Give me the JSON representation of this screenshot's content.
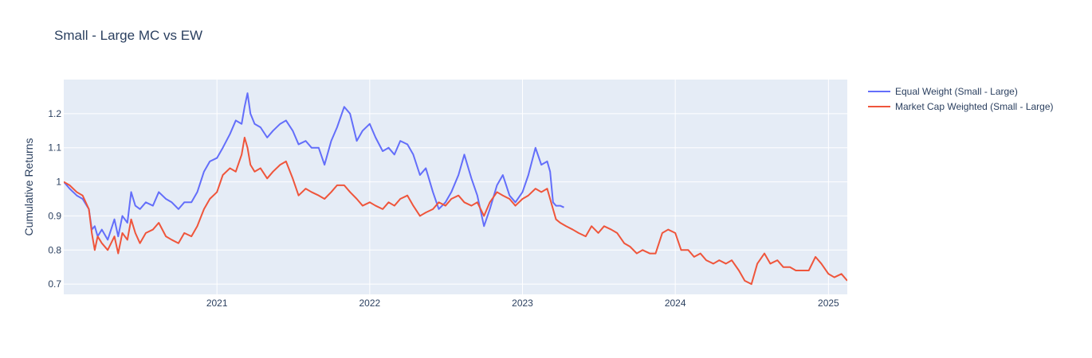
{
  "chart_data": {
    "type": "line",
    "title": "Small - Large MC vs EW",
    "xlabel": "",
    "ylabel": "Cumulative Returns",
    "x_range": [
      "2020-01-01",
      "2025-02-15"
    ],
    "ylim": [
      0.67,
      1.3
    ],
    "x_ticks": [
      {
        "date": "2021-01-01",
        "label": "2021"
      },
      {
        "date": "2022-01-01",
        "label": "2022"
      },
      {
        "date": "2023-01-01",
        "label": "2023"
      },
      {
        "date": "2024-01-01",
        "label": "2024"
      },
      {
        "date": "2025-01-01",
        "label": "2025"
      }
    ],
    "y_ticks": [
      0.7,
      0.8,
      0.9,
      1,
      1.1,
      1.2
    ],
    "y_tick_labels": [
      "0.7",
      "0.8",
      "0.9",
      "1",
      "1.1",
      "1.2"
    ],
    "grid": true,
    "legend_position": "top-right",
    "series": [
      {
        "name": "Equal Weight (Small - Large)",
        "color": "#636efa",
        "points": [
          [
            "2020-01-01",
            1.0
          ],
          [
            "2020-01-15",
            0.98
          ],
          [
            "2020-02-01",
            0.96
          ],
          [
            "2020-02-15",
            0.95
          ],
          [
            "2020-03-01",
            0.92
          ],
          [
            "2020-03-08",
            0.86
          ],
          [
            "2020-03-15",
            0.87
          ],
          [
            "2020-03-22",
            0.84
          ],
          [
            "2020-04-01",
            0.86
          ],
          [
            "2020-04-15",
            0.83
          ],
          [
            "2020-05-01",
            0.89
          ],
          [
            "2020-05-10",
            0.84
          ],
          [
            "2020-05-20",
            0.9
          ],
          [
            "2020-06-01",
            0.88
          ],
          [
            "2020-06-10",
            0.97
          ],
          [
            "2020-06-20",
            0.93
          ],
          [
            "2020-07-01",
            0.92
          ],
          [
            "2020-07-15",
            0.94
          ],
          [
            "2020-08-01",
            0.93
          ],
          [
            "2020-08-15",
            0.97
          ],
          [
            "2020-09-01",
            0.95
          ],
          [
            "2020-09-15",
            0.94
          ],
          [
            "2020-10-01",
            0.92
          ],
          [
            "2020-10-15",
            0.94
          ],
          [
            "2020-11-01",
            0.94
          ],
          [
            "2020-11-15",
            0.97
          ],
          [
            "2020-12-01",
            1.03
          ],
          [
            "2020-12-15",
            1.06
          ],
          [
            "2021-01-01",
            1.07
          ],
          [
            "2021-01-15",
            1.1
          ],
          [
            "2021-02-01",
            1.14
          ],
          [
            "2021-02-15",
            1.18
          ],
          [
            "2021-03-01",
            1.17
          ],
          [
            "2021-03-08",
            1.22
          ],
          [
            "2021-03-15",
            1.26
          ],
          [
            "2021-03-22",
            1.2
          ],
          [
            "2021-04-01",
            1.17
          ],
          [
            "2021-04-15",
            1.16
          ],
          [
            "2021-05-01",
            1.13
          ],
          [
            "2021-05-15",
            1.15
          ],
          [
            "2021-06-01",
            1.17
          ],
          [
            "2021-06-15",
            1.18
          ],
          [
            "2021-07-01",
            1.15
          ],
          [
            "2021-07-15",
            1.11
          ],
          [
            "2021-08-01",
            1.12
          ],
          [
            "2021-08-15",
            1.1
          ],
          [
            "2021-09-01",
            1.1
          ],
          [
            "2021-09-15",
            1.05
          ],
          [
            "2021-10-01",
            1.12
          ],
          [
            "2021-10-15",
            1.16
          ],
          [
            "2021-11-01",
            1.22
          ],
          [
            "2021-11-15",
            1.2
          ],
          [
            "2021-12-01",
            1.12
          ],
          [
            "2021-12-15",
            1.15
          ],
          [
            "2022-01-01",
            1.17
          ],
          [
            "2022-01-15",
            1.13
          ],
          [
            "2022-02-01",
            1.09
          ],
          [
            "2022-02-15",
            1.1
          ],
          [
            "2022-03-01",
            1.08
          ],
          [
            "2022-03-15",
            1.12
          ],
          [
            "2022-04-01",
            1.11
          ],
          [
            "2022-04-15",
            1.08
          ],
          [
            "2022-05-01",
            1.02
          ],
          [
            "2022-05-15",
            1.04
          ],
          [
            "2022-06-01",
            0.97
          ],
          [
            "2022-06-15",
            0.92
          ],
          [
            "2022-07-01",
            0.94
          ],
          [
            "2022-07-15",
            0.97
          ],
          [
            "2022-08-01",
            1.02
          ],
          [
            "2022-08-15",
            1.08
          ],
          [
            "2022-09-01",
            1.01
          ],
          [
            "2022-09-15",
            0.96
          ],
          [
            "2022-10-01",
            0.87
          ],
          [
            "2022-10-15",
            0.92
          ],
          [
            "2022-11-01",
            0.99
          ],
          [
            "2022-11-15",
            1.02
          ],
          [
            "2022-12-01",
            0.96
          ],
          [
            "2022-12-15",
            0.94
          ],
          [
            "2023-01-01",
            0.97
          ],
          [
            "2023-01-15",
            1.02
          ],
          [
            "2023-02-01",
            1.1
          ],
          [
            "2023-02-15",
            1.05
          ],
          [
            "2023-03-01",
            1.06
          ],
          [
            "2023-03-08",
            1.03
          ],
          [
            "2023-03-15",
            0.94
          ],
          [
            "2023-03-22",
            0.93
          ],
          [
            "2023-04-01",
            0.93
          ],
          [
            "2023-04-10",
            0.925
          ]
        ]
      },
      {
        "name": "Market Cap Weighted (Small - Large)",
        "color": "#ef553b",
        "points": [
          [
            "2020-01-01",
            1.0
          ],
          [
            "2020-01-15",
            0.99
          ],
          [
            "2020-02-01",
            0.97
          ],
          [
            "2020-02-15",
            0.96
          ],
          [
            "2020-03-01",
            0.92
          ],
          [
            "2020-03-08",
            0.85
          ],
          [
            "2020-03-15",
            0.8
          ],
          [
            "2020-03-22",
            0.84
          ],
          [
            "2020-04-01",
            0.82
          ],
          [
            "2020-04-15",
            0.8
          ],
          [
            "2020-05-01",
            0.84
          ],
          [
            "2020-05-10",
            0.79
          ],
          [
            "2020-05-20",
            0.85
          ],
          [
            "2020-06-01",
            0.83
          ],
          [
            "2020-06-10",
            0.89
          ],
          [
            "2020-06-20",
            0.85
          ],
          [
            "2020-07-01",
            0.82
          ],
          [
            "2020-07-15",
            0.85
          ],
          [
            "2020-08-01",
            0.86
          ],
          [
            "2020-08-15",
            0.88
          ],
          [
            "2020-09-01",
            0.84
          ],
          [
            "2020-09-15",
            0.83
          ],
          [
            "2020-10-01",
            0.82
          ],
          [
            "2020-10-15",
            0.85
          ],
          [
            "2020-11-01",
            0.84
          ],
          [
            "2020-11-15",
            0.87
          ],
          [
            "2020-12-01",
            0.92
          ],
          [
            "2020-12-15",
            0.95
          ],
          [
            "2021-01-01",
            0.97
          ],
          [
            "2021-01-15",
            1.02
          ],
          [
            "2021-02-01",
            1.04
          ],
          [
            "2021-02-15",
            1.03
          ],
          [
            "2021-03-01",
            1.08
          ],
          [
            "2021-03-08",
            1.13
          ],
          [
            "2021-03-15",
            1.1
          ],
          [
            "2021-03-22",
            1.05
          ],
          [
            "2021-04-01",
            1.03
          ],
          [
            "2021-04-15",
            1.04
          ],
          [
            "2021-05-01",
            1.01
          ],
          [
            "2021-05-15",
            1.03
          ],
          [
            "2021-06-01",
            1.05
          ],
          [
            "2021-06-15",
            1.06
          ],
          [
            "2021-07-01",
            1.01
          ],
          [
            "2021-07-15",
            0.96
          ],
          [
            "2021-08-01",
            0.98
          ],
          [
            "2021-08-15",
            0.97
          ],
          [
            "2021-09-01",
            0.96
          ],
          [
            "2021-09-15",
            0.95
          ],
          [
            "2021-10-01",
            0.97
          ],
          [
            "2021-10-15",
            0.99
          ],
          [
            "2021-11-01",
            0.99
          ],
          [
            "2021-11-15",
            0.97
          ],
          [
            "2021-12-01",
            0.95
          ],
          [
            "2021-12-15",
            0.93
          ],
          [
            "2022-01-01",
            0.94
          ],
          [
            "2022-01-15",
            0.93
          ],
          [
            "2022-02-01",
            0.92
          ],
          [
            "2022-02-15",
            0.94
          ],
          [
            "2022-03-01",
            0.93
          ],
          [
            "2022-03-15",
            0.95
          ],
          [
            "2022-04-01",
            0.96
          ],
          [
            "2022-04-15",
            0.93
          ],
          [
            "2022-05-01",
            0.9
          ],
          [
            "2022-05-15",
            0.91
          ],
          [
            "2022-06-01",
            0.92
          ],
          [
            "2022-06-15",
            0.94
          ],
          [
            "2022-07-01",
            0.93
          ],
          [
            "2022-07-15",
            0.95
          ],
          [
            "2022-08-01",
            0.96
          ],
          [
            "2022-08-15",
            0.94
          ],
          [
            "2022-09-01",
            0.93
          ],
          [
            "2022-09-15",
            0.94
          ],
          [
            "2022-10-01",
            0.9
          ],
          [
            "2022-10-15",
            0.94
          ],
          [
            "2022-11-01",
            0.97
          ],
          [
            "2022-11-15",
            0.96
          ],
          [
            "2022-12-01",
            0.95
          ],
          [
            "2022-12-15",
            0.93
          ],
          [
            "2023-01-01",
            0.95
          ],
          [
            "2023-01-15",
            0.96
          ],
          [
            "2023-02-01",
            0.98
          ],
          [
            "2023-02-15",
            0.97
          ],
          [
            "2023-03-01",
            0.98
          ],
          [
            "2023-03-08",
            0.95
          ],
          [
            "2023-03-15",
            0.92
          ],
          [
            "2023-03-22",
            0.89
          ],
          [
            "2023-04-01",
            0.88
          ],
          [
            "2023-04-15",
            0.87
          ],
          [
            "2023-05-01",
            0.86
          ],
          [
            "2023-05-15",
            0.85
          ],
          [
            "2023-06-01",
            0.84
          ],
          [
            "2023-06-15",
            0.87
          ],
          [
            "2023-07-01",
            0.85
          ],
          [
            "2023-07-15",
            0.87
          ],
          [
            "2023-08-01",
            0.86
          ],
          [
            "2023-08-15",
            0.85
          ],
          [
            "2023-09-01",
            0.82
          ],
          [
            "2023-09-15",
            0.81
          ],
          [
            "2023-10-01",
            0.79
          ],
          [
            "2023-10-15",
            0.8
          ],
          [
            "2023-11-01",
            0.79
          ],
          [
            "2023-11-15",
            0.79
          ],
          [
            "2023-12-01",
            0.85
          ],
          [
            "2023-12-15",
            0.86
          ],
          [
            "2024-01-01",
            0.85
          ],
          [
            "2024-01-15",
            0.8
          ],
          [
            "2024-02-01",
            0.8
          ],
          [
            "2024-02-15",
            0.78
          ],
          [
            "2024-03-01",
            0.79
          ],
          [
            "2024-03-15",
            0.77
          ],
          [
            "2024-04-01",
            0.76
          ],
          [
            "2024-04-15",
            0.77
          ],
          [
            "2024-05-01",
            0.76
          ],
          [
            "2024-05-15",
            0.77
          ],
          [
            "2024-06-01",
            0.74
          ],
          [
            "2024-06-15",
            0.71
          ],
          [
            "2024-07-01",
            0.7
          ],
          [
            "2024-07-15",
            0.76
          ],
          [
            "2024-08-01",
            0.79
          ],
          [
            "2024-08-15",
            0.76
          ],
          [
            "2024-09-01",
            0.77
          ],
          [
            "2024-09-15",
            0.75
          ],
          [
            "2024-10-01",
            0.75
          ],
          [
            "2024-10-15",
            0.74
          ],
          [
            "2024-11-01",
            0.74
          ],
          [
            "2024-11-15",
            0.74
          ],
          [
            "2024-12-01",
            0.78
          ],
          [
            "2024-12-15",
            0.76
          ],
          [
            "2025-01-01",
            0.73
          ],
          [
            "2025-01-15",
            0.72
          ],
          [
            "2025-02-01",
            0.73
          ],
          [
            "2025-02-15",
            0.71
          ]
        ]
      }
    ]
  }
}
